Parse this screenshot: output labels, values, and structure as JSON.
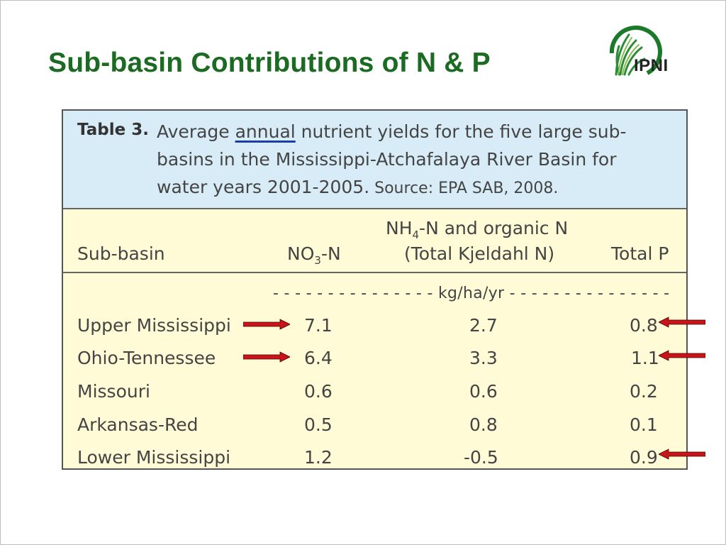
{
  "slide": {
    "title": "Sub-basin Contributions of N & P",
    "logo_text": "IPNI"
  },
  "table": {
    "label": "Table 3.",
    "caption": {
      "line1_before": "Average ",
      "line1_underlined": "annual",
      "line1_after": " nutrient yields for the five large sub-",
      "line2": "basins in the Mississippi-Atchafalaya River Basin for",
      "line3_main": "water years 2001-2005.",
      "line3_source": " Source: EPA SAB, 2008."
    },
    "headers": {
      "subbasin": "Sub-basin",
      "no3_pre": "NO",
      "no3_sub": "3",
      "no3_post": "-N",
      "nh4_line1_pre": "NH",
      "nh4_line1_sub": "4",
      "nh4_line1_post": "-N and organic N",
      "nh4_line2": "(Total Kjeldahl N)",
      "total_p": "Total P"
    },
    "units": "- - - - - - - - - - - - - - - kg/ha/yr - - - - - - - - - - - - - - -",
    "rows": [
      {
        "name": "Upper Mississippi",
        "no3": "7.1",
        "tkn": "2.7",
        "tp": "0.8"
      },
      {
        "name": "Ohio-Tennessee",
        "no3": "6.4",
        "tkn": "3.3",
        "tp": "1.1"
      },
      {
        "name": "Missouri",
        "no3": "0.6",
        "tkn": "0.6",
        "tp": "0.2"
      },
      {
        "name": "Arkansas-Red",
        "no3": "0.5",
        "tkn": "0.8",
        "tp": "0.1"
      },
      {
        "name": "Lower Mississippi",
        "no3": "1.2",
        "tkn": "-0.5",
        "tp": "0.9"
      }
    ]
  },
  "colors": {
    "title_green": "#1b6b22",
    "arrow_red": "#c8151b",
    "caption_bg": "#d8ecf7",
    "table_bg": "#fffbd6"
  }
}
